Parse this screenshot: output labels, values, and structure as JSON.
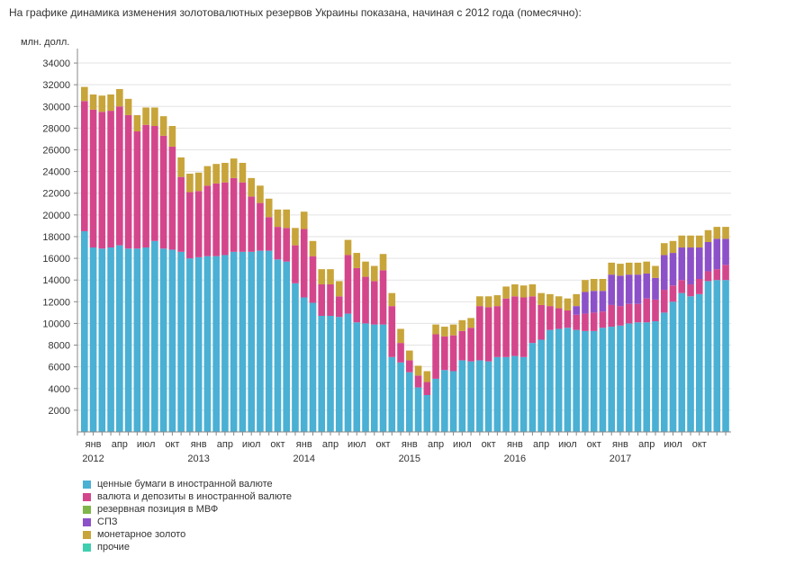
{
  "caption": "На графике динамика изменения золотовалютных резервов Украины показана, начиная с 2012 года (помесячно):",
  "chart_data": {
    "type": "bar",
    "stacked": true,
    "ylabel": "млн. долл.",
    "ylim": [
      0,
      35000
    ],
    "yticks": [
      2000,
      4000,
      6000,
      8000,
      10000,
      12000,
      14000,
      16000,
      18000,
      20000,
      22000,
      24000,
      26000,
      28000,
      30000,
      32000,
      34000
    ],
    "grid": true,
    "legend_position": "bottom-left",
    "month_labels": [
      {
        "index": 1,
        "label": "янв"
      },
      {
        "index": 4,
        "label": "апр"
      },
      {
        "index": 7,
        "label": "июл"
      },
      {
        "index": 10,
        "label": "окт"
      },
      {
        "index": 13,
        "label": "янв"
      },
      {
        "index": 16,
        "label": "апр"
      },
      {
        "index": 19,
        "label": "июл"
      },
      {
        "index": 22,
        "label": "окт"
      },
      {
        "index": 25,
        "label": "янв"
      },
      {
        "index": 28,
        "label": "апр"
      },
      {
        "index": 31,
        "label": "июл"
      },
      {
        "index": 34,
        "label": "окт"
      },
      {
        "index": 37,
        "label": "янв"
      },
      {
        "index": 40,
        "label": "апр"
      },
      {
        "index": 43,
        "label": "июл"
      },
      {
        "index": 46,
        "label": "окт"
      },
      {
        "index": 49,
        "label": "янв"
      },
      {
        "index": 52,
        "label": "апр"
      },
      {
        "index": 55,
        "label": "июл"
      },
      {
        "index": 58,
        "label": "окт"
      },
      {
        "index": 61,
        "label": "янв"
      },
      {
        "index": 64,
        "label": "апр"
      },
      {
        "index": 67,
        "label": "июл"
      },
      {
        "index": 70,
        "label": "окт"
      }
    ],
    "year_labels": [
      {
        "index": 1,
        "label": "2012"
      },
      {
        "index": 13,
        "label": "2013"
      },
      {
        "index": 25,
        "label": "2014"
      },
      {
        "index": 37,
        "label": "2015"
      },
      {
        "index": 49,
        "label": "2016"
      },
      {
        "index": 61,
        "label": "2017"
      }
    ],
    "series": [
      {
        "name": "ценные бумаги в иностранной валюте",
        "color": "#4ab0d4",
        "values": [
          18500,
          17000,
          16900,
          17000,
          17200,
          16900,
          16900,
          17000,
          17600,
          16900,
          16800,
          16600,
          16000,
          16100,
          16200,
          16200,
          16300,
          16600,
          16600,
          16600,
          16700,
          16700,
          15900,
          15700,
          13700,
          12400,
          11900,
          10700,
          10700,
          10600,
          10900,
          10100,
          10000,
          9900,
          9900,
          6900,
          6400,
          5500,
          4100,
          3400,
          4900,
          5700,
          5600,
          6600,
          6500,
          6600,
          6500,
          6900,
          6900,
          7000,
          6900,
          8200,
          8500,
          9400,
          9500,
          9600,
          9400,
          9300,
          9300,
          9600,
          9700,
          9800,
          10000,
          10100,
          10100,
          10200,
          11000,
          12000,
          12800,
          12500,
          12700,
          13900,
          14000,
          14000
        ]
      },
      {
        "name": "валюта и депозиты в иностранной валюте",
        "color": "#d4468c",
        "values": [
          12000,
          12700,
          12600,
          12600,
          12800,
          12300,
          10800,
          11300,
          10600,
          10400,
          9500,
          6900,
          6100,
          6100,
          6500,
          6700,
          6700,
          6800,
          6400,
          5100,
          4400,
          3100,
          3000,
          3100,
          3500,
          6300,
          4300,
          2900,
          2900,
          1900,
          5400,
          5000,
          4300,
          4000,
          5000,
          4700,
          1800,
          1100,
          1100,
          1200,
          4100,
          3100,
          3300,
          2700,
          3100,
          5000,
          5000,
          4700,
          5400,
          5500,
          5500,
          4300,
          3200,
          2200,
          1900,
          1600,
          1400,
          1600,
          1700,
          1500,
          2000,
          1800,
          1800,
          1700,
          2200,
          2000,
          2100,
          1500,
          1200,
          1100,
          1400,
          900,
          1000,
          1400
        ]
      },
      {
        "name": "резервная позиция в МВФ",
        "color": "#7fb54a",
        "values": [
          0,
          0,
          0,
          0,
          0,
          0,
          0,
          0,
          0,
          0,
          0,
          0,
          0,
          0,
          0,
          0,
          0,
          0,
          0,
          0,
          0,
          0,
          0,
          0,
          0,
          0,
          0,
          0,
          0,
          0,
          0,
          0,
          0,
          0,
          0,
          0,
          0,
          0,
          0,
          0,
          0,
          0,
          0,
          0,
          0,
          0,
          0,
          0,
          0,
          0,
          0,
          0,
          0,
          0,
          0,
          0,
          0,
          0,
          0,
          0,
          0,
          0,
          0,
          0,
          0,
          0,
          0,
          0,
          0,
          0,
          0,
          0,
          0,
          0
        ]
      },
      {
        "name": "СПЗ",
        "color": "#8c51c8",
        "values": [
          0,
          0,
          0,
          0,
          0,
          0,
          0,
          0,
          0,
          0,
          0,
          0,
          0,
          0,
          0,
          0,
          0,
          0,
          0,
          0,
          0,
          0,
          0,
          0,
          0,
          0,
          0,
          0,
          0,
          0,
          0,
          0,
          0,
          0,
          0,
          0,
          0,
          0,
          0,
          0,
          0,
          0,
          0,
          0,
          0,
          0,
          0,
          0,
          0,
          0,
          0,
          0,
          0,
          0,
          0,
          0,
          800,
          2000,
          2000,
          1900,
          2800,
          2800,
          2700,
          2700,
          2300,
          2000,
          3200,
          3000,
          3000,
          3400,
          2900,
          2700,
          2800,
          2400
        ]
      },
      {
        "name": "монетарное золото",
        "color": "#c8a53a",
        "values": [
          1300,
          1400,
          1500,
          1500,
          1600,
          1500,
          1500,
          1600,
          1700,
          1800,
          1900,
          1800,
          1700,
          1700,
          1800,
          1800,
          1800,
          1800,
          1800,
          1700,
          1600,
          1700,
          1600,
          1700,
          1600,
          1600,
          1400,
          1400,
          1400,
          1400,
          1400,
          1400,
          1400,
          1400,
          1500,
          1200,
          1300,
          900,
          900,
          1000,
          900,
          900,
          1000,
          1000,
          900,
          900,
          1000,
          1000,
          1100,
          1100,
          1100,
          1100,
          1100,
          1100,
          1100,
          1100,
          1100,
          1100,
          1100,
          1100,
          1100,
          1100,
          1100,
          1100,
          1100,
          1100,
          1100,
          1100,
          1100,
          1100,
          1100,
          1100,
          1100,
          1100
        ]
      },
      {
        "name": "прочие",
        "color": "#3fcfae",
        "values": [
          0,
          0,
          0,
          0,
          0,
          0,
          0,
          0,
          0,
          0,
          0,
          0,
          0,
          0,
          0,
          0,
          0,
          0,
          0,
          0,
          0,
          0,
          0,
          0,
          0,
          0,
          0,
          0,
          0,
          0,
          0,
          0,
          0,
          0,
          0,
          0,
          0,
          0,
          0,
          0,
          0,
          0,
          0,
          0,
          0,
          0,
          0,
          0,
          0,
          0,
          0,
          0,
          0,
          0,
          0,
          0,
          0,
          0,
          0,
          0,
          0,
          0,
          0,
          0,
          0,
          0,
          0,
          0,
          0,
          0,
          0,
          0,
          0,
          0
        ]
      }
    ]
  }
}
